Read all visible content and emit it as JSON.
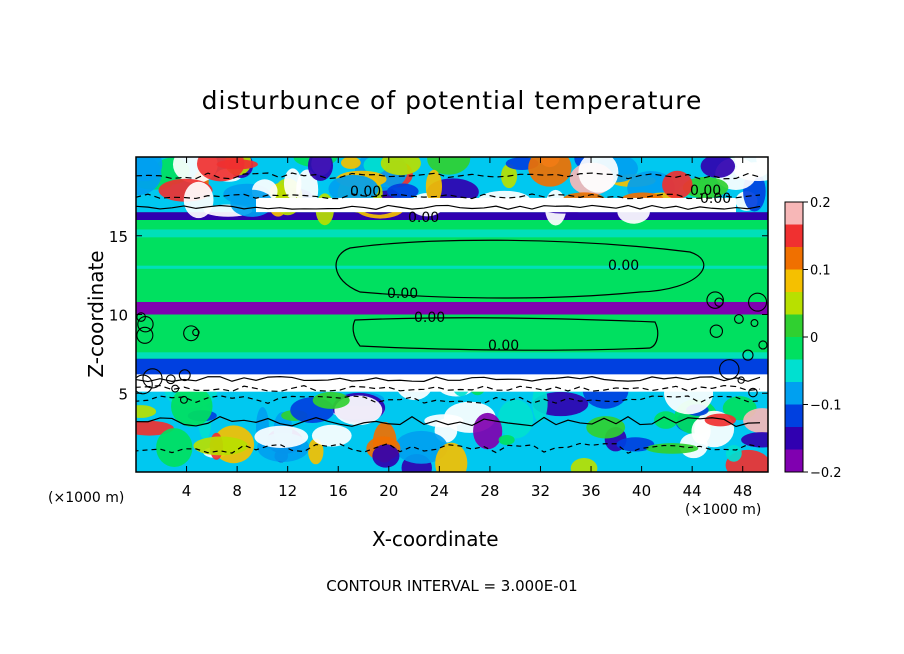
{
  "chart_data": {
    "type": "heatmap",
    "title": "disturbunce of potential temperature",
    "xlabel": "X-coordinate",
    "ylabel": "Z-coordinate",
    "x_unit_label_left": "(×1000 m)",
    "x_unit_label_right": "(×1000 m)",
    "xlim": [
      0,
      50
    ],
    "ylim": [
      0,
      20
    ],
    "xticks": [
      4,
      8,
      12,
      16,
      20,
      24,
      28,
      32,
      36,
      40,
      44,
      48
    ],
    "yticks": [
      5,
      10,
      15
    ],
    "colorbar": {
      "range": [
        -0.2,
        0.2
      ],
      "ticks": [
        "0.2",
        "0.1",
        "0",
        "−0.1",
        "−0.2"
      ],
      "colors": [
        "#f7b7b7",
        "#f03030",
        "#f07000",
        "#f5c000",
        "#b8e000",
        "#30d030",
        "#00e060",
        "#00e0d0",
        "#00a0f0",
        "#0040e0",
        "#3000b0",
        "#8000b0"
      ]
    },
    "contour_labels": [
      "0.00",
      "0.00",
      "0.00",
      "0.00",
      "0.00",
      "0.00",
      "0.00",
      "0.00"
    ],
    "bands": [
      {
        "z": [
          0,
          6
        ],
        "pattern": "turbulent",
        "value": "mixed"
      },
      {
        "z": [
          6,
          7.2
        ],
        "value": -0.12
      },
      {
        "z": [
          7.2,
          10
        ],
        "value": 0.0
      },
      {
        "z": [
          10,
          10.8
        ],
        "value": -0.18
      },
      {
        "z": [
          10.8,
          16
        ],
        "value": 0.0
      },
      {
        "z": [
          16,
          16.5
        ],
        "value": -0.15
      },
      {
        "z": [
          16.5,
          20
        ],
        "pattern": "turbulent",
        "value": "mixed"
      }
    ],
    "annotation": "CONTOUR INTERVAL = 3.000E-01"
  }
}
